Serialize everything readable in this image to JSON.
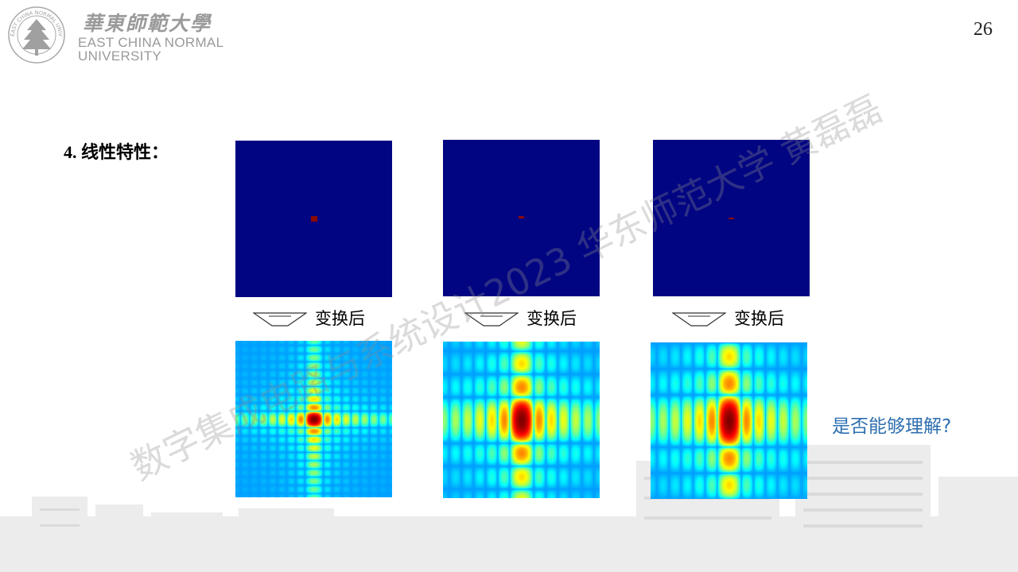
{
  "header": {
    "university_cn": "華東師範大學",
    "university_en_line1": "EAST CHINA NORMAL",
    "university_en_line2": "UNIVERSITY",
    "seal_text": "EAST CHINA NORMAL UNIVERSITY"
  },
  "page_number": "26",
  "section_title": "4. 线性特性：",
  "transform_label": "变换后",
  "panels": [
    {
      "input_icon": "single-point-image",
      "output_icon": "fourier-spectrum-image"
    },
    {
      "input_icon": "horizontal-line-image",
      "output_icon": "fourier-spectrum-image"
    },
    {
      "input_icon": "horizontal-line-image",
      "output_icon": "fourier-spectrum-image"
    }
  ],
  "question": "是否能够理解?",
  "watermark": "数字集成电路与系统设计2023 华东师范大学 黄磊磊",
  "colors": {
    "input_background": "#020582",
    "impulse": "#8a0a05",
    "question_text": "#2e6fb0"
  }
}
